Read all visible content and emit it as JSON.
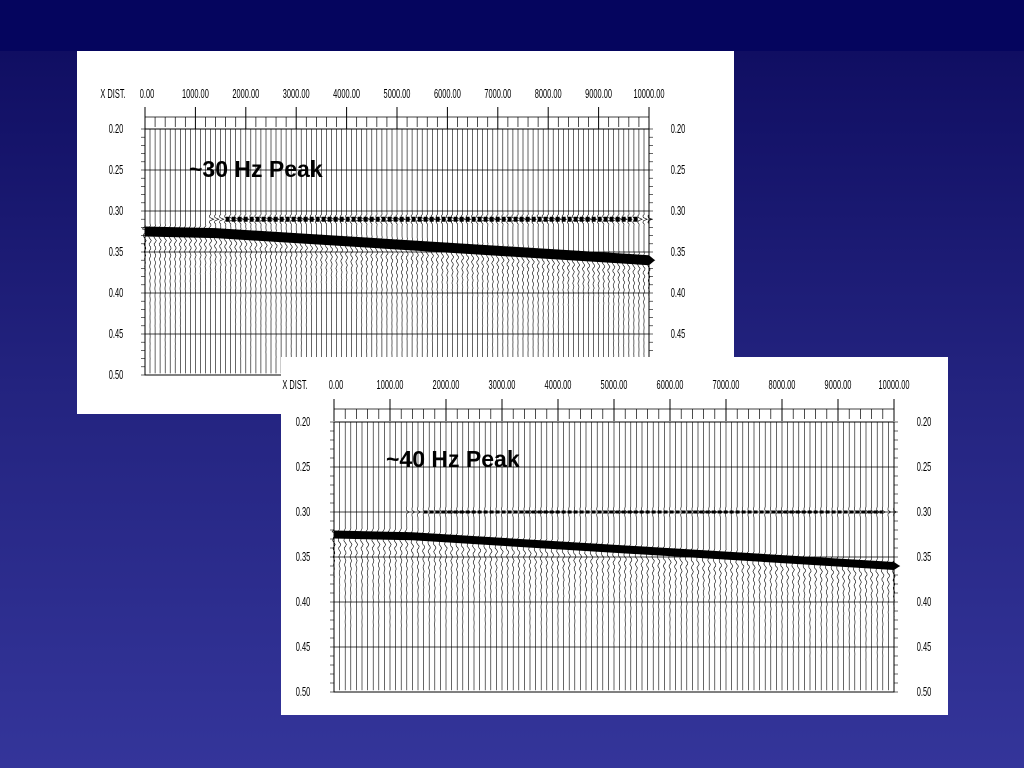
{
  "slide": {
    "background_top": "#0d0b5e",
    "background_bottom": "#34359a",
    "title_bar_color": "#05055e"
  },
  "chart_data": [
    {
      "type": "seismic-wiggle",
      "title": "",
      "annotation": "~30 Hz Peak",
      "x_axis_label": "X DIST.",
      "x_tick_labels": [
        "0.00",
        "1000.00",
        "2000.00",
        "3000.00",
        "4000.00",
        "5000.00",
        "6000.00",
        "7000.00",
        "8000.00",
        "9000.00",
        "10000.00"
      ],
      "y_tick_labels": [
        "0.20",
        "0.25",
        "0.30",
        "0.35",
        "0.40",
        "0.45",
        "0.50"
      ],
      "xlim": [
        0,
        10000
      ],
      "ylim": [
        0.2,
        0.5
      ],
      "y_inverted": true,
      "reflector_time": 0.31,
      "direct_arrival": {
        "start_x": 0,
        "start_t": 0.325,
        "end_x": 10000,
        "end_t": 0.36
      }
    },
    {
      "type": "seismic-wiggle",
      "title": "",
      "annotation": "~40 Hz Peak",
      "x_axis_label": "X DIST.",
      "x_tick_labels": [
        "0.00",
        "1000.00",
        "2000.00",
        "3000.00",
        "4000.00",
        "5000.00",
        "6000.00",
        "7000.00",
        "8000.00",
        "9000.00",
        "10000.00"
      ],
      "y_tick_labels": [
        "0.20",
        "0.25",
        "0.30",
        "0.35",
        "0.40",
        "0.45",
        "0.50"
      ],
      "xlim": [
        0,
        10000
      ],
      "ylim": [
        0.2,
        0.5
      ],
      "y_inverted": true,
      "reflector_time": 0.3,
      "direct_arrival": {
        "start_x": 0,
        "start_t": 0.325,
        "end_x": 10000,
        "end_t": 0.36
      }
    }
  ]
}
